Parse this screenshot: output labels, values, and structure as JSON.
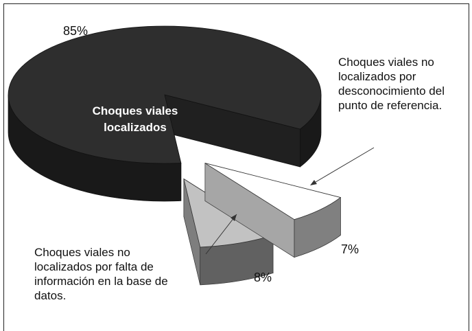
{
  "chart_data": {
    "type": "pie",
    "categories": [
      "Choques viales localizados",
      "Choques viales no localizados por desconocimiento del punto de referencia.",
      "Choques viales no localizados por falta de información en la base de datos."
    ],
    "values": [
      85,
      7,
      8
    ],
    "value_labels": [
      "85%",
      "7%",
      "8%"
    ],
    "colors": [
      "#2e2e2e",
      "#ffffff",
      "#c2c2c2"
    ]
  }
}
